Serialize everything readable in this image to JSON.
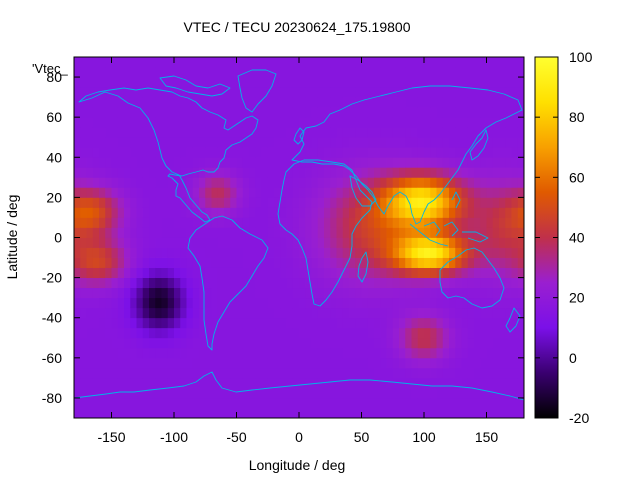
{
  "chart_data": {
    "type": "heatmap",
    "title": "VTEC / TECU 20230624_175.19800",
    "xlabel": "Longitude / deg",
    "ylabel": "Latitude / deg",
    "key_label": "'Vtec_",
    "xlim": [
      -180,
      180
    ],
    "ylim": [
      -90,
      90
    ],
    "x_ticks": [
      -150,
      -100,
      -50,
      0,
      50,
      100,
      150
    ],
    "y_ticks": [
      -80,
      -60,
      -40,
      -20,
      0,
      20,
      40,
      60,
      80
    ],
    "colorbar": {
      "range": [
        -20,
        100
      ],
      "ticks": [
        -20,
        0,
        20,
        40,
        60,
        80,
        100
      ],
      "palette": [
        "#000000",
        "#3a0070",
        "#7b10e8",
        "#9a1fd0",
        "#c0304a",
        "#e05a00",
        "#f8a000",
        "#ffe000",
        "#ffff30"
      ]
    },
    "background_level": 16,
    "features": [
      {
        "name": "equatorial anomaly north crest (Asia)",
        "lon": 100,
        "lat": 18,
        "vtec": 82
      },
      {
        "name": "equatorial anomaly south crest (Indonesia)",
        "lon": 105,
        "lat": -8,
        "vtec": 85
      },
      {
        "name": "Indian Ocean / South Asia high",
        "lon": 60,
        "lat": 5,
        "vtec": 45
      },
      {
        "name": "Western Pacific high",
        "lon": 165,
        "lat": 5,
        "vtec": 40
      },
      {
        "name": "Central Pacific north",
        "lon": -165,
        "lat": 13,
        "vtec": 46
      },
      {
        "name": "Central Pacific south",
        "lon": -160,
        "lat": -12,
        "vtec": 44
      },
      {
        "name": "Caribbean / Central America",
        "lon": -65,
        "lat": 22,
        "vtec": 38
      },
      {
        "name": "Southern Indian Ocean high",
        "lon": 100,
        "lat": -50,
        "vtec": 40
      },
      {
        "name": "South Pacific depletion",
        "lon": -112,
        "lat": -32,
        "vtec": -15
      }
    ]
  }
}
